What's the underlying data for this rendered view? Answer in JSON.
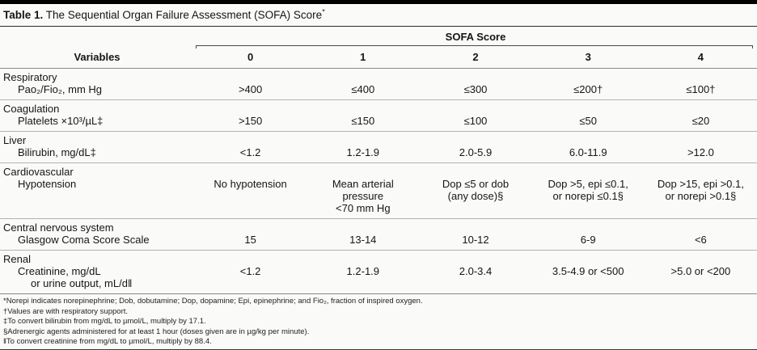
{
  "colors": {
    "top_rule": "#000000",
    "hairline": "#b3b3b3",
    "background": "#fafaf8"
  },
  "title": {
    "bold": "Table 1.",
    "rest": " The Sequential Organ Failure Assessment (SOFA) Score",
    "marker": "*"
  },
  "header": {
    "spanner": "SOFA Score",
    "variables": "Variables",
    "cols": [
      "0",
      "1",
      "2",
      "3",
      "4"
    ]
  },
  "groups": [
    {
      "name": "Respiratory",
      "rows": [
        {
          "label": "Pao₂/Fio₂, mm Hg",
          "values": [
            ">400",
            "≤400",
            "≤300",
            "≤200†",
            "≤100†"
          ]
        }
      ]
    },
    {
      "name": "Coagulation",
      "rows": [
        {
          "label": "Platelets ×10³/µL‡",
          "values": [
            ">150",
            "≤150",
            "≤100",
            "≤50",
            "≤20"
          ]
        }
      ]
    },
    {
      "name": "Liver",
      "rows": [
        {
          "label": "Bilirubin, mg/dL‡",
          "values": [
            "<1.2",
            "1.2-1.9",
            "2.0-5.9",
            "6.0-11.9",
            ">12.0"
          ]
        }
      ]
    },
    {
      "name": "Cardiovascular",
      "rows": [
        {
          "label": "Hypotension",
          "values": [
            "No hypotension",
            "Mean arterial\npressure\n<70 mm Hg",
            "Dop ≤5 or dob\n(any dose)§",
            "Dop >5, epi ≤0.1,\nor norepi ≤0.1§",
            "Dop >15, epi >0.1,\nor norepi >0.1§"
          ]
        }
      ]
    },
    {
      "name": "Central nervous system",
      "rows": [
        {
          "label": "Glasgow Coma Score Scale",
          "values": [
            "15",
            "13-14",
            "10-12",
            "6-9",
            "<6"
          ]
        }
      ]
    },
    {
      "name": "Renal",
      "rows": [
        {
          "label": "Creatinine, mg/dL",
          "label2": "or urine output, mL/d‖",
          "values": [
            "<1.2",
            "1.2-1.9",
            "2.0-3.4",
            "3.5-4.9 or <500",
            ">5.0 or <200"
          ]
        }
      ]
    }
  ],
  "footnotes": [
    "*Norepi indicates norepinephrine; Dob, dobutamine; Dop, dopamine; Epi, epinephrine; and Fio₂, fraction of inspired oxygen.",
    "†Values are with respiratory support.",
    "‡To convert bilirubin from mg/dL to µmol/L, multiply by 17.1.",
    "§Adrenergic agents administered for at least 1 hour (doses given are in µg/kg per minute).",
    "‖To convert creatinine from mg/dL to µmol/L, multiply by 88.4."
  ]
}
